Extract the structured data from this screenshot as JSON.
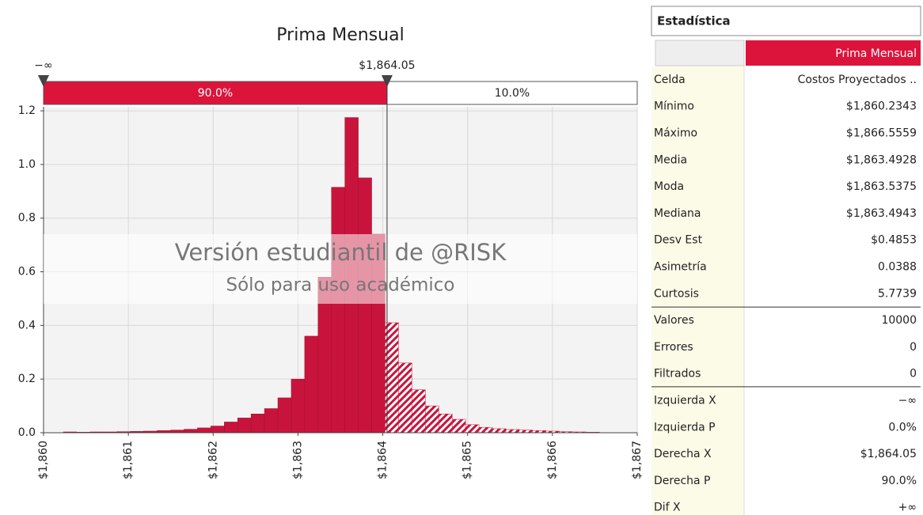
{
  "chart_data": {
    "type": "histogram",
    "title": "Prima Mensual",
    "bins": [
      1860.234,
      1860.392,
      1860.55,
      1860.708,
      1860.866,
      1861.024,
      1861.182,
      1861.34,
      1861.499,
      1861.657,
      1861.815,
      1861.973,
      1862.131,
      1862.289,
      1862.447,
      1862.605,
      1862.763,
      1862.921,
      1863.079,
      1863.237,
      1863.395,
      1863.553,
      1863.711,
      1863.869,
      1864.027,
      1864.185,
      1864.343,
      1864.502,
      1864.66,
      1864.818,
      1864.976,
      1865.134,
      1865.292,
      1865.45,
      1865.608,
      1865.766,
      1865.924,
      1866.082,
      1866.24,
      1866.398,
      1866.556
    ],
    "values": [
      0.003,
      0.002,
      0.003,
      0.003,
      0.004,
      0.005,
      0.006,
      0.008,
      0.01,
      0.013,
      0.018,
      0.025,
      0.04,
      0.055,
      0.07,
      0.09,
      0.13,
      0.2,
      0.36,
      0.58,
      0.915,
      1.175,
      0.95,
      0.74,
      0.41,
      0.26,
      0.16,
      0.1,
      0.07,
      0.05,
      0.03,
      0.02,
      0.015,
      0.012,
      0.01,
      0.008,
      0.006,
      0.004,
      0.003,
      0.002
    ],
    "color": "#c8143c",
    "xlim": [
      1860,
      1867
    ],
    "xticks": [
      {
        "value": 1860,
        "label": "$1,860"
      },
      {
        "value": 1861,
        "label": "$1,861"
      },
      {
        "value": 1862,
        "label": "$1,862"
      },
      {
        "value": 1863,
        "label": "$1,863"
      },
      {
        "value": 1864,
        "label": "$1,864"
      },
      {
        "value": 1865,
        "label": "$1,865"
      },
      {
        "value": 1866,
        "label": "$1,866"
      },
      {
        "value": 1867,
        "label": "$1,867"
      }
    ],
    "ylim": [
      0,
      1.215
    ],
    "yticks": [
      {
        "value": 0,
        "label": "0.0"
      },
      0.2,
      0.4,
      0.6,
      0.8,
      {
        "value": 1,
        "label": "1.0"
      },
      1.2
    ],
    "grid": true,
    "left_delimiter": {
      "label": "−∞"
    },
    "right_delimiter": {
      "value": 1864.05,
      "label": "$1,864.05"
    },
    "left_percent": {
      "value": 90,
      "label": "90.0%"
    },
    "right_percent": {
      "value": 10,
      "label": "10.0%"
    },
    "watermark": [
      "Versión estudiantil de @RISK",
      "Sólo para uso académico"
    ]
  },
  "statistics": {
    "title": "Estadística",
    "column": "Prima Mensual",
    "rows": [
      [
        "Celda",
        "Costos Proyectados .."
      ],
      [
        "Mínimo",
        "$1,860.2343"
      ],
      [
        "Máximo",
        "$1,866.5559"
      ],
      [
        "Media",
        "$1,863.4928"
      ],
      [
        "Moda",
        "$1,863.5375"
      ],
      [
        "Mediana",
        "$1,863.4943"
      ],
      [
        "Desv Est",
        "$0.4853"
      ],
      [
        "Asimetría",
        "0.0388"
      ],
      [
        "Curtosis",
        "5.7739"
      ],
      [
        "Valores",
        "10000"
      ],
      [
        "Errores",
        "0"
      ],
      [
        "Filtrados",
        "0"
      ],
      [
        "Izquierda X",
        "−∞"
      ],
      [
        "Izquierda P",
        "0.0%"
      ],
      [
        "Derecha X",
        "$1,864.05"
      ],
      [
        "Derecha P",
        "90.0%"
      ],
      [
        "Dif X",
        "+∞"
      ]
    ]
  }
}
